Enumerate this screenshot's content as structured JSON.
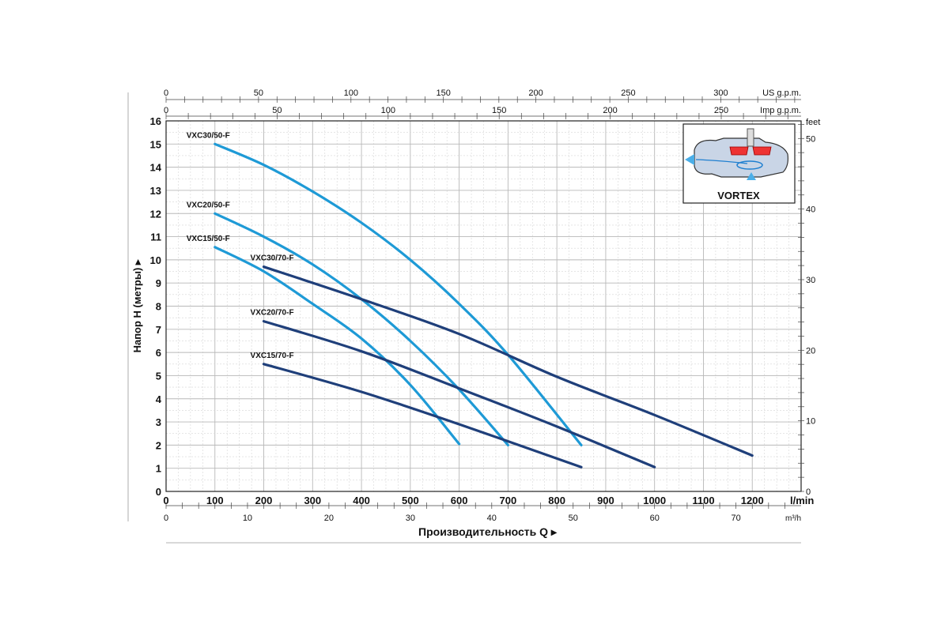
{
  "chart_data": {
    "type": "line",
    "xlabel": "Производительность Q",
    "ylabel": "Напор H (метры)",
    "x_unit": "l/min",
    "xlim": [
      0,
      1300
    ],
    "ylim": [
      0,
      16
    ],
    "grid": true,
    "x_ticks": [
      0,
      100,
      200,
      300,
      400,
      500,
      600,
      700,
      800,
      900,
      1000,
      1100,
      1200
    ],
    "y_ticks": [
      0,
      1,
      2,
      3,
      4,
      5,
      6,
      7,
      8,
      9,
      10,
      11,
      12,
      13,
      14,
      15,
      16
    ],
    "secondary_axes": {
      "us_gpm": {
        "unit": "US g.p.m.",
        "ticks": [
          0,
          50,
          100,
          150,
          200,
          250,
          300
        ]
      },
      "imp_gpm": {
        "unit": "Imp g.p.m.",
        "ticks": [
          0,
          50,
          100,
          150,
          200,
          250
        ]
      },
      "m3h": {
        "unit": "m³/h",
        "ticks": [
          0,
          10,
          20,
          30,
          40,
          50,
          60,
          70
        ]
      },
      "feet": {
        "unit": "feet",
        "ticks": [
          0,
          10,
          20,
          30,
          40,
          50
        ]
      }
    },
    "series": [
      {
        "name": "VXC30/50-F",
        "color": "#1e9ad6",
        "x": [
          100,
          200,
          300,
          400,
          500,
          600,
          700,
          850
        ],
        "y": [
          15,
          14.1,
          12.95,
          11.6,
          10,
          8.1,
          5.9,
          2
        ]
      },
      {
        "name": "VXC20/50-F",
        "color": "#1e9ad6",
        "x": [
          100,
          200,
          300,
          400,
          500,
          600,
          700
        ],
        "y": [
          12,
          11,
          9.8,
          8.3,
          6.5,
          4.4,
          2
        ]
      },
      {
        "name": "VXC15/50-F",
        "color": "#1e9ad6",
        "x": [
          100,
          200,
          300,
          400,
          500,
          600
        ],
        "y": [
          10.55,
          9.5,
          8.1,
          6.6,
          4.6,
          2.05
        ]
      },
      {
        "name": "VXC30/70-F",
        "color": "#1f3f7a",
        "x": [
          200,
          400,
          600,
          800,
          1000,
          1200
        ],
        "y": [
          9.7,
          8.3,
          6.8,
          4.95,
          3.3,
          1.55
        ]
      },
      {
        "name": "VXC20/70-F",
        "color": "#1f3f7a",
        "x": [
          200,
          400,
          600,
          800,
          1000
        ],
        "y": [
          7.35,
          6.05,
          4.45,
          2.8,
          1.05
        ]
      },
      {
        "name": "VXC15/70-F",
        "color": "#1f3f7a",
        "x": [
          200,
          400,
          600,
          850
        ],
        "y": [
          5.5,
          4.3,
          2.9,
          1.05
        ]
      }
    ]
  },
  "inset": {
    "label": "VORTEX"
  }
}
